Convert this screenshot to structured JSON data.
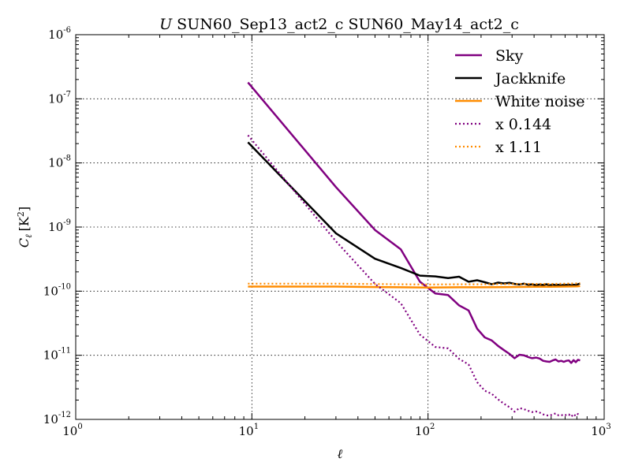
{
  "chart_data": {
    "type": "line",
    "title_italic": "U",
    "title": "SUN60_Sep13_act2_c SUN60_May14_act2_c",
    "xlabel": "ℓ",
    "ylabel_sym": "C",
    "ylabel_sub": "ℓ",
    "ylabel_unit": "[K",
    "ylabel_unit_exp": "2",
    "ylabel_unit_end": "]",
    "x_scale": "log",
    "y_scale": "log",
    "xlim": [
      1,
      1000
    ],
    "ylim": [
      1e-12,
      1e-06
    ],
    "grid": true,
    "legend_position": "top-right",
    "x_ticks": [
      {
        "base": "10",
        "exp": "0",
        "value": 1
      },
      {
        "base": "10",
        "exp": "1",
        "value": 10
      },
      {
        "base": "10",
        "exp": "2",
        "value": 100
      },
      {
        "base": "10",
        "exp": "3",
        "value": 1000
      }
    ],
    "y_ticks": [
      {
        "base": "10",
        "exp": "-12",
        "value": 1e-12
      },
      {
        "base": "10",
        "exp": "-11",
        "value": 1e-11
      },
      {
        "base": "10",
        "exp": "-10",
        "value": 1e-10
      },
      {
        "base": "10",
        "exp": "-9",
        "value": 1e-09
      },
      {
        "base": "10",
        "exp": "-8",
        "value": 1e-08
      },
      {
        "base": "10",
        "exp": "-7",
        "value": 1e-07
      },
      {
        "base": "10",
        "exp": "-6",
        "value": 1e-06
      }
    ],
    "series": [
      {
        "name": "Sky",
        "color": "#800080",
        "style": "solid",
        "x": [
          9.5,
          30,
          50,
          70,
          90,
          110,
          130,
          150,
          170,
          190,
          210,
          230,
          250,
          270,
          290,
          310,
          330,
          350,
          370,
          390,
          410,
          430,
          450,
          470,
          490,
          510,
          530,
          550,
          570,
          590,
          610,
          630,
          650,
          670,
          690,
          710,
          730
        ],
        "y": [
          1.8e-07,
          4.2e-09,
          9e-10,
          4.5e-10,
          1.4e-10,
          9.2e-11,
          8.7e-11,
          6e-11,
          5e-11,
          2.6e-11,
          1.9e-11,
          1.7e-11,
          1.4e-11,
          1.2e-11,
          1.05e-11,
          9e-12,
          1.02e-11,
          1e-11,
          9.4e-12,
          9e-12,
          9.2e-12,
          8.9e-12,
          8.2e-12,
          8e-12,
          7.9e-12,
          8.3e-12,
          8.6e-12,
          8e-12,
          8.2e-12,
          7.9e-12,
          8.2e-12,
          8.3e-12,
          7.6e-12,
          8.4e-12,
          7.8e-12,
          8.5e-12,
          8.3e-12
        ]
      },
      {
        "name": "Jackknife",
        "color": "#000000",
        "style": "solid",
        "x": [
          9.5,
          30,
          50,
          70,
          90,
          110,
          130,
          150,
          170,
          190,
          210,
          230,
          250,
          270,
          290,
          310,
          330,
          350,
          370,
          390,
          410,
          430,
          450,
          470,
          490,
          510,
          530,
          550,
          570,
          590,
          610,
          630,
          650,
          670,
          690,
          710,
          730
        ],
        "y": [
          2.1e-08,
          8e-10,
          3.2e-10,
          2.3e-10,
          1.75e-10,
          1.7e-10,
          1.6e-10,
          1.68e-10,
          1.4e-10,
          1.48e-10,
          1.38e-10,
          1.28e-10,
          1.36e-10,
          1.32e-10,
          1.35e-10,
          1.3e-10,
          1.27e-10,
          1.31e-10,
          1.26e-10,
          1.28e-10,
          1.24e-10,
          1.27e-10,
          1.25e-10,
          1.28e-10,
          1.23e-10,
          1.27e-10,
          1.24e-10,
          1.26e-10,
          1.23e-10,
          1.26e-10,
          1.25e-10,
          1.27e-10,
          1.23e-10,
          1.26e-10,
          1.25e-10,
          1.28e-10,
          1.32e-10
        ]
      },
      {
        "name": "White noise",
        "color": "#ff8c00",
        "style": "solid",
        "x": [
          9.5,
          30,
          50,
          70,
          100,
          150,
          200,
          300,
          400,
          500,
          600,
          700,
          730
        ],
        "y": [
          1.18e-10,
          1.18e-10,
          1.16e-10,
          1.15e-10,
          1.14e-10,
          1.15e-10,
          1.15e-10,
          1.16e-10,
          1.17e-10,
          1.17e-10,
          1.18e-10,
          1.19e-10,
          1.2e-10
        ]
      },
      {
        "name": "x 0.144",
        "color": "#800080",
        "style": "dotted",
        "x": [
          9.5,
          30,
          50,
          70,
          90,
          110,
          130,
          150,
          170,
          190,
          210,
          230,
          250,
          270,
          290,
          310,
          330,
          350,
          370,
          390,
          410,
          430,
          450,
          470,
          490,
          510,
          530,
          550,
          570,
          590,
          610,
          630,
          650,
          670,
          690,
          710,
          730
        ],
        "y": [
          2.7e-08,
          6e-10,
          1.3e-10,
          6.5e-11,
          2.1e-11,
          1.35e-11,
          1.28e-11,
          8.8e-12,
          7.2e-12,
          3.8e-12,
          2.8e-12,
          2.5e-12,
          2.05e-12,
          1.75e-12,
          1.55e-12,
          1.32e-12,
          1.5e-12,
          1.45e-12,
          1.36e-12,
          1.3e-12,
          1.33e-12,
          1.28e-12,
          1.2e-12,
          1.16e-12,
          1.14e-12,
          1.2e-12,
          1.24e-12,
          1.16e-12,
          1.18e-12,
          1.14e-12,
          1.18e-12,
          1.2e-12,
          1.1e-12,
          1.21e-12,
          1.13e-12,
          1.22e-12,
          1.2e-12
        ]
      },
      {
        "name": "x 1.11",
        "color": "#ff8c00",
        "style": "dotted",
        "x": [
          9.5,
          30,
          50,
          70,
          100,
          150,
          200,
          300,
          400,
          500,
          600,
          700,
          730
        ],
        "y": [
          1.31e-10,
          1.31e-10,
          1.29e-10,
          1.28e-10,
          1.27e-10,
          1.28e-10,
          1.28e-10,
          1.29e-10,
          1.3e-10,
          1.3e-10,
          1.31e-10,
          1.32e-10,
          1.33e-10
        ]
      }
    ]
  }
}
